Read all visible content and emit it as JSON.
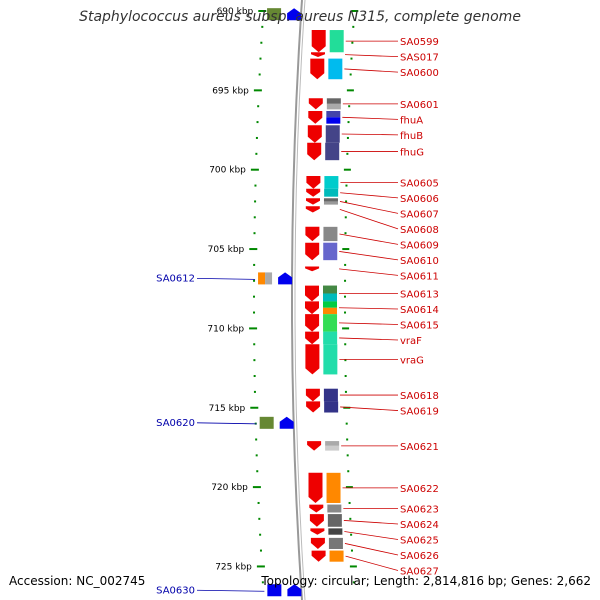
{
  "title": "Staphylococcus aureus subsp. aureus N315, complete genome",
  "footer": {
    "accession": "Accession: NC_002745",
    "summary": "Topology: circular; Length: 2,814,816 bp; Genes: 2,662"
  },
  "colors": {
    "backbone": "#999999",
    "forward_gene": "#ee0000",
    "reverse_gene": "#0000ee",
    "tick": "#008800",
    "right_label": "#cc0000",
    "left_label": "#0000aa"
  },
  "ruler": {
    "unit": "kbp",
    "ticks": [
      {
        "label": "690 kbp",
        "kbp": 690
      },
      {
        "label": "695 kbp",
        "kbp": 695
      },
      {
        "label": "700 kbp",
        "kbp": 700
      },
      {
        "label": "705 kbp",
        "kbp": 705
      },
      {
        "label": "710 kbp",
        "kbp": 710
      },
      {
        "label": "715 kbp",
        "kbp": 715
      },
      {
        "label": "720 kbp",
        "kbp": 720
      },
      {
        "label": "725 kbp",
        "kbp": 725
      }
    ]
  },
  "right_genes": [
    {
      "label": "SA0599",
      "start": 691.2,
      "end": 692.6,
      "domains": [
        "#22dd99"
      ]
    },
    {
      "label": "SAS017",
      "start": 692.6,
      "end": 692.9,
      "domains": []
    },
    {
      "label": "SA0600",
      "start": 693.0,
      "end": 694.3,
      "domains": [
        "#00bbee"
      ]
    },
    {
      "label": "SA0601",
      "start": 695.5,
      "end": 696.2,
      "domains": [
        "#666666",
        "#aaaaaa"
      ]
    },
    {
      "label": "fhuA",
      "start": 696.3,
      "end": 697.1,
      "domains": [
        "#4444aa",
        "#0000ee"
      ]
    },
    {
      "label": "fhuB",
      "start": 697.2,
      "end": 698.3,
      "domains": [
        "#444488"
      ]
    },
    {
      "label": "fhuG",
      "start": 698.3,
      "end": 699.4,
      "domains": [
        "#444488"
      ]
    },
    {
      "label": "SA0605",
      "start": 700.4,
      "end": 701.2,
      "domains": [
        "#00cccc"
      ]
    },
    {
      "label": "SA0606",
      "start": 701.2,
      "end": 701.7,
      "domains": [
        "#00bbbb"
      ]
    },
    {
      "label": "SA0607",
      "start": 701.8,
      "end": 702.2,
      "domains": [
        "#666666",
        "#999999"
      ]
    },
    {
      "label": "SA0608",
      "start": 702.3,
      "end": 702.7,
      "domains": []
    },
    {
      "label": "SA0609",
      "start": 703.6,
      "end": 704.5,
      "domains": [
        "#888888"
      ]
    },
    {
      "label": "SA0610",
      "start": 704.6,
      "end": 705.7,
      "domains": [
        "#6666cc"
      ]
    },
    {
      "label": "SA0611",
      "start": 706.1,
      "end": 706.4,
      "domains": []
    },
    {
      "label": "SA0613",
      "start": 707.3,
      "end": 708.3,
      "domains": [
        "#448844",
        "#00bbbb"
      ]
    },
    {
      "label": "SA0614",
      "start": 708.3,
      "end": 709.1,
      "domains": [
        "#00cc44",
        "#ff8800"
      ]
    },
    {
      "label": "SA0615",
      "start": 709.1,
      "end": 710.2,
      "domains": [
        "#33dd55"
      ]
    },
    {
      "label": "vraF",
      "start": 710.2,
      "end": 711.0,
      "domains": [
        "#22ddaa"
      ]
    },
    {
      "label": "vraG",
      "start": 711.0,
      "end": 712.9,
      "domains": [
        "#22ddaa"
      ]
    },
    {
      "label": "SA0618",
      "start": 713.8,
      "end": 714.6,
      "domains": [
        "#333388"
      ]
    },
    {
      "label": "SA0619",
      "start": 714.6,
      "end": 715.3,
      "domains": [
        "#333388"
      ]
    },
    {
      "label": "SA0621",
      "start": 717.1,
      "end": 717.7,
      "domains": [
        "#aaaaaa",
        "#cccccc"
      ]
    },
    {
      "label": "SA0622",
      "start": 719.1,
      "end": 721.0,
      "domains": [
        "#ff8800"
      ]
    },
    {
      "label": "SA0623",
      "start": 721.1,
      "end": 721.6,
      "domains": [
        "#888888"
      ]
    },
    {
      "label": "SA0624",
      "start": 721.7,
      "end": 722.5,
      "domains": [
        "#666666"
      ]
    },
    {
      "label": "SA0625",
      "start": 722.6,
      "end": 723.0,
      "domains": [
        "#444444"
      ]
    },
    {
      "label": "SA0626",
      "start": 723.2,
      "end": 723.9,
      "domains": [
        "#777777"
      ]
    },
    {
      "label": "SA0627",
      "start": 724.0,
      "end": 724.7,
      "domains": [
        "#ff8800"
      ]
    }
  ],
  "left_genes": [
    {
      "label": "SA0612",
      "start": 706.6,
      "end": 707.1,
      "domains": [
        "#ff8800",
        "#aaaaaa"
      ]
    },
    {
      "label": "SA0620",
      "start": 715.5,
      "end": 716.4,
      "domains": [
        "#668833"
      ]
    },
    {
      "label": "SA0630",
      "start": 726.2,
      "end": 726.8,
      "domains": [
        "#0000ee"
      ]
    }
  ],
  "unlabeled_genes": [
    {
      "strand": "reverse",
      "start": 689.8,
      "end": 690.6,
      "domains": [
        "#668833"
      ]
    }
  ]
}
